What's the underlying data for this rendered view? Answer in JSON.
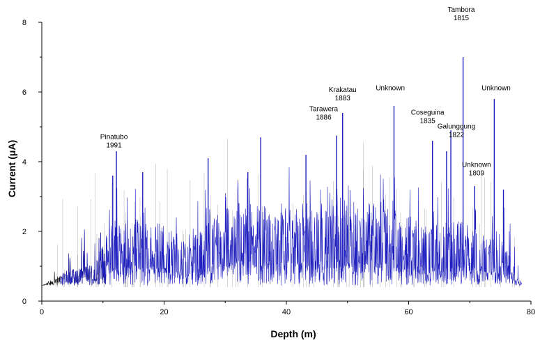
{
  "chart_data": {
    "type": "line",
    "title": "",
    "xlabel": "Depth (m)",
    "ylabel": "Current (μA)",
    "xlim": [
      0,
      80
    ],
    "ylim": [
      0,
      8
    ],
    "x_ticks": [
      0,
      20,
      40,
      60,
      80
    ],
    "y_ticks": [
      0,
      2,
      4,
      6,
      8
    ],
    "grid": false,
    "series": [
      {
        "color": "#1f1fbf",
        "baseline": 0.45,
        "x": [
          0,
          4,
          8,
          10,
          12,
          16,
          20,
          24,
          28,
          32,
          36,
          40,
          44,
          48,
          52,
          56,
          60,
          64,
          68,
          72,
          76,
          78.5
        ],
        "y": [
          0.45,
          0.7,
          0.8,
          1.2,
          1.5,
          1.6,
          1.5,
          1.2,
          1.6,
          1.9,
          1.8,
          1.7,
          1.9,
          2.0,
          1.9,
          1.8,
          1.7,
          1.4,
          1.6,
          1.3,
          1.1,
          0.5
        ],
        "peaks": [
          {
            "x": 11.6,
            "y": 3.6
          },
          {
            "x": 12.2,
            "y": 4.3
          },
          {
            "x": 16.5,
            "y": 3.7
          },
          {
            "x": 27.2,
            "y": 4.1
          },
          {
            "x": 33.7,
            "y": 3.7
          },
          {
            "x": 35.8,
            "y": 4.7
          },
          {
            "x": 43.2,
            "y": 4.2
          },
          {
            "x": 48.2,
            "y": 4.75
          },
          {
            "x": 49.2,
            "y": 5.4
          },
          {
            "x": 57.6,
            "y": 5.6
          },
          {
            "x": 63.9,
            "y": 4.6
          },
          {
            "x": 66.2,
            "y": 4.3
          },
          {
            "x": 66.9,
            "y": 4.9
          },
          {
            "x": 68.9,
            "y": 7.0
          },
          {
            "x": 70.8,
            "y": 3.3
          },
          {
            "x": 74.0,
            "y": 5.8
          },
          {
            "x": 75.5,
            "y": 3.2
          }
        ]
      }
    ],
    "annotations": [
      {
        "line1": "Pinatubo",
        "line2": "1991",
        "x": 11.8,
        "y": 4.65
      },
      {
        "line1": "Tarawera",
        "line2": "1886",
        "x": 46.1,
        "y": 5.45
      },
      {
        "line1": "Krakatau",
        "line2": "1883",
        "x": 49.2,
        "y": 6.0
      },
      {
        "line1": "Unknown",
        "line2": "",
        "x": 57.0,
        "y": 6.05
      },
      {
        "line1": "Coseguina",
        "line2": "1835",
        "x": 63.1,
        "y": 5.35
      },
      {
        "line1": "Galunggung",
        "line2": "1822",
        "x": 67.8,
        "y": 4.95
      },
      {
        "line1": "Tambora",
        "line2": "1815",
        "x": 68.6,
        "y": 8.3
      },
      {
        "line1": "Unknown",
        "line2": "",
        "x": 74.3,
        "y": 6.05
      },
      {
        "line1": "Unknown",
        "line2": "1809",
        "x": 71.1,
        "y": 3.85
      }
    ]
  }
}
